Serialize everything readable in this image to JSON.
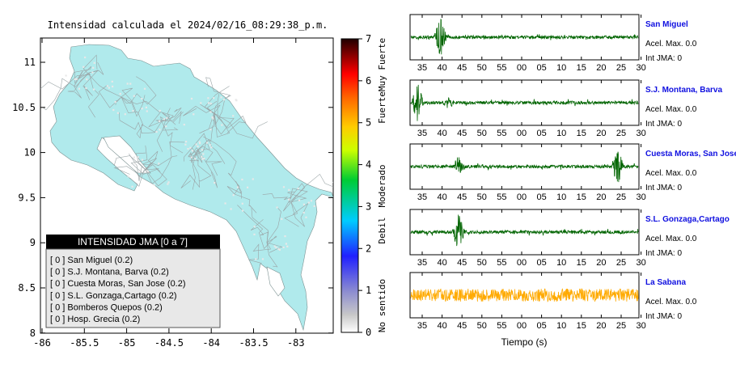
{
  "title": "Intensidad calculada el 2024/02/16_08:29:38_p.m.",
  "map": {
    "lat_ticks": [
      "11",
      "10.5",
      "10",
      "9.5",
      "9",
      "8.5",
      "8"
    ],
    "lon_ticks": [
      "-86",
      "-85.5",
      "-85",
      "-84.5",
      "-84",
      "-83.5",
      "-83"
    ],
    "land_color": "#b0eaec",
    "legend": {
      "header": "INTENSIDAD JMA [0 a 7]",
      "items": [
        "[ 0 ]  San Miguel (0.2)",
        "[ 0 ]  S.J. Montana, Barva (0.2)",
        "[ 0 ]  Cuesta Moras, San Jose (0.2)",
        "[ 0 ]  S.L. Gonzaga,Cartago (0.2)",
        "[ 0 ]  Bomberos Quepos (0.2)",
        "[ 0 ]  Hosp. Grecia (0.2)"
      ]
    }
  },
  "colorbar": {
    "ticks": [
      "7",
      "6",
      "5",
      "4",
      "3",
      "2",
      "1",
      "0"
    ],
    "categories": [
      "Muy Fuerte",
      "Fuerte",
      "Moderado",
      "Debil",
      "No sentido"
    ]
  },
  "chart_data": [
    {
      "type": "line",
      "title": "San Miguel",
      "x_tick_labels": [
        "35",
        "40",
        "45",
        "50",
        "55",
        "00",
        "05",
        "10",
        "15",
        "20",
        "25",
        "30"
      ],
      "annotations": [
        "Acel. Max. 0.0",
        "Int JMA: 0"
      ],
      "series": [
        {
          "color": "#006400"
        }
      ],
      "bursts": [
        {
          "at": "40",
          "amplitude": "high"
        }
      ]
    },
    {
      "type": "line",
      "title": "S.J. Montana, Barva",
      "x_tick_labels": [
        "35",
        "40",
        "45",
        "50",
        "55",
        "00",
        "05",
        "10",
        "15",
        "20",
        "25",
        "30"
      ],
      "annotations": [
        "Acel. Max. 0.0",
        "Int JMA: 0"
      ],
      "series": [
        {
          "color": "#006400"
        }
      ],
      "bursts": [
        {
          "at": "33",
          "amplitude": "high"
        },
        {
          "at": "41",
          "amplitude": "low"
        }
      ]
    },
    {
      "type": "line",
      "title": "Cuesta Moras, San Jose",
      "x_tick_labels": [
        "35",
        "40",
        "45",
        "50",
        "55",
        "00",
        "05",
        "10",
        "15",
        "20",
        "25",
        "30"
      ],
      "annotations": [
        "Acel. Max. 0.0",
        "Int JMA: 0"
      ],
      "series": [
        {
          "color": "#006400"
        }
      ],
      "bursts": [
        {
          "at": "43",
          "amplitude": "medium"
        },
        {
          "at": "25",
          "amplitude": "high"
        }
      ]
    },
    {
      "type": "line",
      "title": "S.L. Gonzaga,Cartago",
      "x_tick_labels": [
        "35",
        "40",
        "45",
        "50",
        "55",
        "00",
        "05",
        "10",
        "15",
        "20",
        "25",
        "30"
      ],
      "annotations": [
        "Acel. Max. 0.0",
        "Int JMA: 0"
      ],
      "series": [
        {
          "color": "#006400"
        }
      ],
      "bursts": [
        {
          "at": "43",
          "amplitude": "high"
        }
      ]
    },
    {
      "type": "line",
      "title": "La Sabana",
      "x_tick_labels": [
        "35",
        "40",
        "45",
        "50",
        "55",
        "00",
        "05",
        "10",
        "15",
        "20",
        "25",
        "30"
      ],
      "xlabel": "Tiempo (s)",
      "annotations": [
        "Acel. Max. 0.0",
        "Int JMA: 0"
      ],
      "series": [
        {
          "color": "#ffaa00"
        }
      ],
      "bursts": [
        {
          "at": "continuous",
          "amplitude": "medium"
        }
      ]
    }
  ]
}
